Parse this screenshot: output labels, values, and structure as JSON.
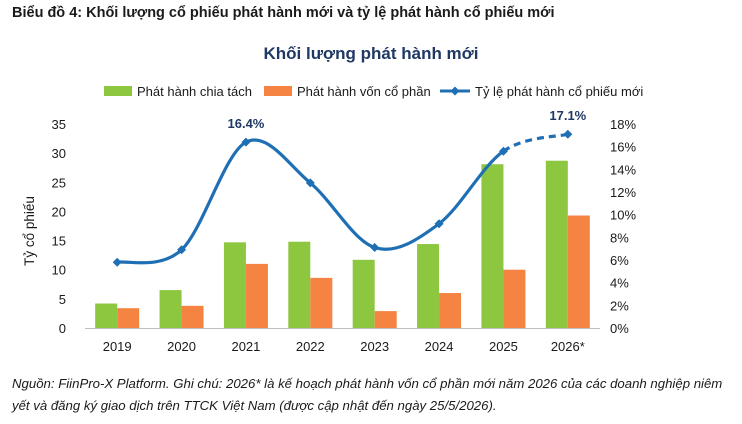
{
  "figure_title": "Biểu đồ 4: Khối lượng cổ phiếu phát hành mới và tỷ lệ phát hành cổ phiếu mới",
  "source_note": "Nguồn: FiinPro-X Platform. Ghi chú: 2026* là kế hoạch phát hành vốn cổ phần mới năm 2026 của các doanh nghiệp niêm yết và đăng ký giao dịch trên TTCK Việt Nam (được cập nhật đến ngày 25/5/2026).",
  "colors": {
    "split": "#8dc63f",
    "equity": "#f58442",
    "ratio": "#1f6fb5",
    "title": "#1f3864"
  },
  "chart_data": {
    "type": "bar",
    "title": "Khối lượng phát hành mới",
    "categories": [
      "2019",
      "2020",
      "2021",
      "2022",
      "2023",
      "2024",
      "2025",
      "2026*"
    ],
    "ylabel": "Tỷ cổ phiếu",
    "ylim": [
      0,
      35
    ],
    "yticks": [
      0,
      5,
      10,
      15,
      20,
      25,
      30,
      35
    ],
    "y2lim": [
      0,
      18
    ],
    "y2ticks": [
      "0%",
      "2%",
      "4%",
      "6%",
      "8%",
      "10%",
      "12%",
      "14%",
      "16%",
      "18%"
    ],
    "legend_position": "top",
    "series": [
      {
        "name": "Phát hành chia tách",
        "type": "bar",
        "axis": "left",
        "values": [
          4.2,
          6.5,
          14.7,
          14.8,
          11.7,
          14.4,
          28.1,
          28.7
        ]
      },
      {
        "name": "Phát hành vốn cổ phần",
        "type": "bar",
        "axis": "left",
        "values": [
          3.4,
          3.8,
          11.0,
          8.6,
          2.9,
          6.0,
          10.0,
          19.3
        ]
      },
      {
        "name": "Tỷ lệ phát hành cổ phiếu mới",
        "type": "line",
        "axis": "right",
        "unit": "%",
        "values": [
          5.8,
          6.9,
          16.4,
          12.8,
          7.1,
          9.2,
          15.6,
          17.1
        ],
        "dashed_from_index": 6,
        "data_labels": [
          null,
          null,
          "16.4%",
          null,
          null,
          null,
          null,
          "17.1%"
        ]
      }
    ]
  }
}
